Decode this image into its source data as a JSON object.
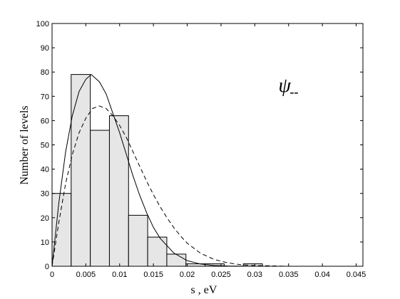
{
  "chart_data": {
    "type": "bar",
    "xlabel": "s ,  eV",
    "ylabel": "Number of levels",
    "xlim": [
      0,
      0.046
    ],
    "ylim": [
      0,
      100
    ],
    "x_ticks": [
      0,
      0.005,
      0.01,
      0.015,
      0.02,
      0.025,
      0.03,
      0.035,
      0.04,
      0.045
    ],
    "x_tick_labels": [
      "0",
      "0.005",
      "0.01",
      "0.015",
      "0.02",
      "0.025",
      "0.03",
      "0.035",
      "0.04",
      "0.045"
    ],
    "y_ticks": [
      0,
      10,
      20,
      30,
      40,
      50,
      60,
      70,
      80,
      90,
      100
    ],
    "y_tick_labels": [
      "0",
      "10",
      "20",
      "30",
      "40",
      "50",
      "60",
      "70",
      "80",
      "90",
      "100"
    ],
    "grid": false,
    "annotation": {
      "symbol": "ψ",
      "subscript": "--",
      "x": 0.0335,
      "y": 80
    },
    "histogram": {
      "bin_width": 0.00283,
      "bin_starts": [
        0,
        0.00283,
        0.00566,
        0.00849,
        0.01132,
        0.01415,
        0.01698,
        0.01981,
        0.02264,
        0.02547,
        0.0283,
        0.03113,
        0.03396,
        0.03679,
        0.03962,
        0.04245
      ],
      "values": [
        30,
        79,
        56,
        62,
        21,
        12,
        5,
        1,
        1,
        0,
        1,
        0,
        0,
        0,
        0,
        0
      ],
      "fill_color": "#e6e6e6",
      "edge_color": "#000000"
    },
    "series": [
      {
        "style": "solid",
        "x": [
          0,
          0.001,
          0.002,
          0.003,
          0.004,
          0.005,
          0.0058,
          0.007,
          0.008,
          0.009,
          0.01,
          0.011,
          0.012,
          0.013,
          0.014,
          0.015,
          0.016,
          0.018,
          0.02,
          0.022,
          0.024,
          0.026,
          0.03,
          0.035,
          0.04,
          0.046
        ],
        "y": [
          0,
          26,
          47,
          62,
          72,
          77,
          79,
          76,
          71,
          63,
          55,
          46,
          37,
          29,
          22,
          16,
          11.5,
          5.5,
          2.3,
          0.9,
          0.3,
          0.1,
          0,
          0,
          0,
          0
        ]
      },
      {
        "style": "dashed",
        "x": [
          0,
          0.001,
          0.002,
          0.003,
          0.004,
          0.005,
          0.006,
          0.007,
          0.008,
          0.009,
          0.01,
          0.011,
          0.012,
          0.013,
          0.014,
          0.015,
          0.016,
          0.017,
          0.018,
          0.019,
          0.02,
          0.022,
          0.024,
          0.026,
          0.028,
          0.03,
          0.035,
          0.04,
          0.046
        ],
        "y": [
          0,
          18,
          34,
          46,
          55,
          61,
          65,
          66,
          65,
          62,
          58,
          53,
          47,
          41,
          35,
          29.5,
          24.5,
          20,
          16,
          12.5,
          9.5,
          5.3,
          2.8,
          1.4,
          0.6,
          0.3,
          0,
          0,
          0
        ]
      }
    ]
  }
}
